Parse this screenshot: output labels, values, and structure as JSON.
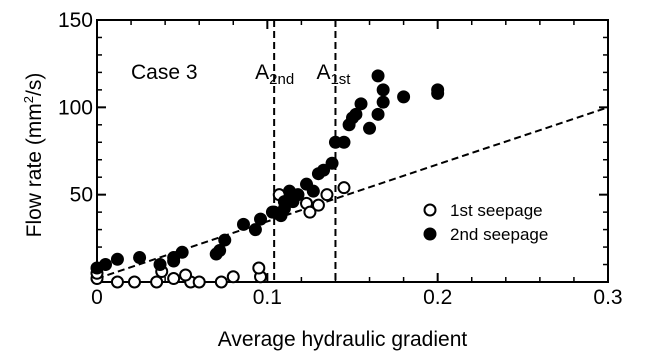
{
  "chart_data": {
    "type": "scatter",
    "case_label": "Case 3",
    "xlabel": "Average hydraulic gradient",
    "ylabel_main": "Flow rate (mm",
    "ylabel_sup": "2",
    "ylabel_end": "/s)",
    "xlim": [
      0,
      0.3
    ],
    "ylim": [
      0,
      150
    ],
    "xticks": [
      0,
      0.1,
      0.2,
      0.3
    ],
    "xtick_labels": [
      "0",
      "0.1",
      "0.2",
      "0.3"
    ],
    "yticks": [
      50,
      100,
      150
    ],
    "ytick_labels": [
      "50",
      "100",
      "150"
    ],
    "vlines": [
      {
        "x": 0.104,
        "label_main": "A",
        "label_sub": "2nd"
      },
      {
        "x": 0.14,
        "label_main": "A",
        "label_sub": "1st"
      }
    ],
    "trendline": {
      "x": [
        0,
        0.3
      ],
      "y": [
        2,
        100
      ],
      "style": "dashed"
    },
    "series": [
      {
        "name": "1st seepage",
        "marker": "open-circle",
        "points": [
          [
            0,
            2
          ],
          [
            0,
            5
          ],
          [
            0.012,
            0
          ],
          [
            0.022,
            0
          ],
          [
            0.035,
            0
          ],
          [
            0.045,
            2
          ],
          [
            0.055,
            0
          ],
          [
            0.038,
            6
          ],
          [
            0.052,
            4
          ],
          [
            0.06,
            0
          ],
          [
            0.073,
            0
          ],
          [
            0.08,
            3
          ],
          [
            0.096,
            3
          ],
          [
            0.095,
            8
          ],
          [
            0.104,
            40
          ],
          [
            0.107,
            50
          ],
          [
            0.115,
            50
          ],
          [
            0.123,
            45
          ],
          [
            0.125,
            40
          ],
          [
            0.13,
            44
          ],
          [
            0.135,
            50
          ],
          [
            0.145,
            54
          ]
        ]
      },
      {
        "name": "2nd seepage",
        "marker": "filled-circle",
        "points": [
          [
            0,
            8
          ],
          [
            0.005,
            10
          ],
          [
            0.012,
            13
          ],
          [
            0.025,
            14
          ],
          [
            0.037,
            10
          ],
          [
            0.045,
            14
          ],
          [
            0.05,
            17
          ],
          [
            0.045,
            12
          ],
          [
            0.07,
            16
          ],
          [
            0.072,
            18
          ],
          [
            0.075,
            24
          ],
          [
            0.086,
            33
          ],
          [
            0.093,
            30
          ],
          [
            0.096,
            36
          ],
          [
            0.103,
            40
          ],
          [
            0.11,
            42
          ],
          [
            0.108,
            38
          ],
          [
            0.11,
            46
          ],
          [
            0.113,
            52
          ],
          [
            0.115,
            46
          ],
          [
            0.118,
            50
          ],
          [
            0.123,
            56
          ],
          [
            0.127,
            52
          ],
          [
            0.13,
            62
          ],
          [
            0.133,
            64
          ],
          [
            0.138,
            68
          ],
          [
            0.14,
            80
          ],
          [
            0.145,
            80
          ],
          [
            0.148,
            90
          ],
          [
            0.15,
            94
          ],
          [
            0.152,
            96
          ],
          [
            0.155,
            102
          ],
          [
            0.16,
            88
          ],
          [
            0.165,
            96
          ],
          [
            0.168,
            103
          ],
          [
            0.165,
            118
          ],
          [
            0.168,
            110
          ],
          [
            0.18,
            106
          ],
          [
            0.2,
            110
          ],
          [
            0.2,
            108
          ]
        ]
      }
    ],
    "legend_position": "right"
  }
}
